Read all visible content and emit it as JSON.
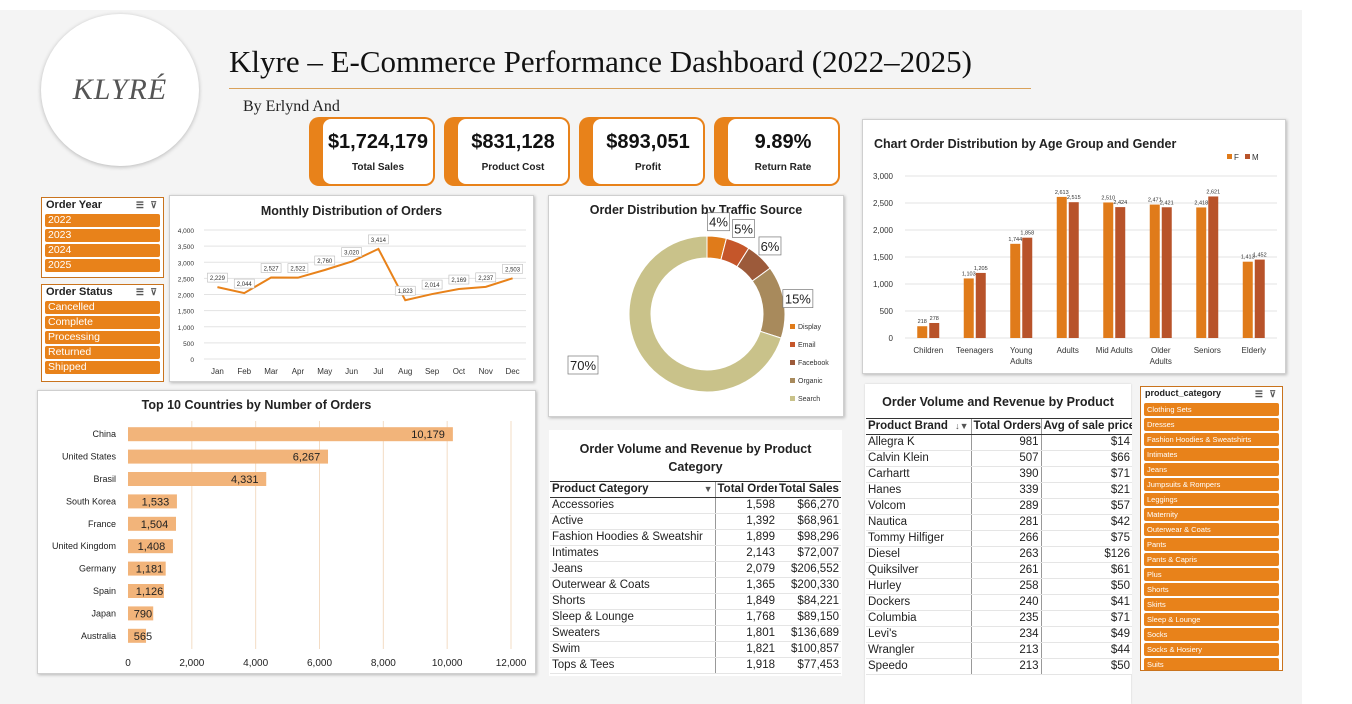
{
  "logo": "KLYRÉ",
  "title": "Klyre – E-Commerce Performance Dashboard (2022–2025)",
  "byline": "By Erlynd And",
  "kpis": [
    {
      "value": "$1,724,179",
      "label": "Total Sales"
    },
    {
      "value": "$831,128",
      "label": "Product Cost"
    },
    {
      "value": "$893,051",
      "label": "Profit"
    },
    {
      "value": "9.89%",
      "label": "Return Rate"
    }
  ],
  "slicers": {
    "order_year": {
      "title": "Order Year",
      "items": [
        "2022",
        "2023",
        "2024",
        "2025"
      ]
    },
    "order_status": {
      "title": "Order Status",
      "items": [
        "Cancelled",
        "Complete",
        "Processing",
        "Returned",
        "Shipped"
      ]
    },
    "product_category": {
      "title": "product_category",
      "items": [
        "Clothing Sets",
        "Dresses",
        "Fashion Hoodies & Sweatshirts",
        "Intimates",
        "Jeans",
        "Jumpsuits & Rompers",
        "Leggings",
        "Maternity",
        "Outerwear & Coats",
        "Pants",
        "Pants & Capris",
        "Plus",
        "Shorts",
        "Skirts",
        "Sleep & Lounge",
        "Socks",
        "Socks & Hosiery",
        "Suits"
      ]
    }
  },
  "colors": {
    "accent": "#e8821a",
    "bar_light": "#f2b47a",
    "female": "#e07b1a",
    "male": "#b8532a"
  },
  "chart_data": [
    {
      "type": "line",
      "title": "Monthly Distribution of Orders",
      "categories": [
        "Jan",
        "Feb",
        "Mar",
        "Apr",
        "May",
        "Jun",
        "Jul",
        "Aug",
        "Sep",
        "Oct",
        "Nov",
        "Dec"
      ],
      "values": [
        2229,
        2044,
        2527,
        2522,
        2760,
        3020,
        3414,
        1823,
        2014,
        2169,
        2237,
        2503
      ],
      "data_labels": [
        "2,229",
        "2,044",
        "2,527",
        "2,522",
        "2,760",
        "3,020",
        "3,414",
        "1,823",
        "2,014",
        "2,169",
        "2,237",
        "2,503"
      ],
      "ylim": [
        0,
        4000
      ],
      "yticks": [
        "0",
        "500",
        "1,000",
        "1,500",
        "2,000",
        "2,500",
        "3,000",
        "3,500",
        "4,000"
      ],
      "grid": true
    },
    {
      "type": "pie",
      "title": "Order Distribution by Traffic Source",
      "categories": [
        "Display",
        "Email",
        "Facebook",
        "Organic",
        "Search"
      ],
      "values": [
        4,
        5,
        6,
        15,
        70
      ],
      "data_labels": [
        "4%",
        "5%",
        "6%",
        "15%",
        "70%"
      ],
      "colors": [
        "#e07b1a",
        "#c5562a",
        "#9c5a3a",
        "#a88a5c",
        "#c9c28a"
      ],
      "legend": "right"
    },
    {
      "type": "bar",
      "title": "Chart Order Distribution by Age Group and Gender",
      "categories": [
        "Children",
        "Teenagers",
        "Young Adults",
        "Adults",
        "Mid Adults",
        "Older Adults",
        "Seniors",
        "Elderly"
      ],
      "series": [
        {
          "name": "F",
          "values": [
            218,
            1103,
            1744,
            2613,
            2510,
            2471,
            2418,
            1413
          ],
          "labels": [
            "218",
            "1,103",
            "1,744",
            "2,613",
            "2,510",
            "2,471",
            "2,418",
            "1,413"
          ]
        },
        {
          "name": "M",
          "values": [
            278,
            1205,
            1858,
            2515,
            2424,
            2421,
            2621,
            1452
          ],
          "labels": [
            "278",
            "1,205",
            "1,858",
            "2,515",
            "2,424",
            "2,421",
            "2,621",
            "1,452"
          ]
        }
      ],
      "ylim": [
        0,
        3000
      ],
      "yticks": [
        "0",
        "500",
        "1,000",
        "1,500",
        "2,000",
        "2,500",
        "3,000"
      ],
      "legend": "top-right",
      "grid": true
    },
    {
      "type": "bar",
      "orientation": "horizontal",
      "title": "Top 10 Countries by Number of Orders",
      "categories": [
        "China",
        "United States",
        "Brasil",
        "South Korea",
        "France",
        "United Kingdom",
        "Germany",
        "Spain",
        "Japan",
        "Australia"
      ],
      "values": [
        10179,
        6267,
        4331,
        1533,
        1504,
        1408,
        1181,
        1126,
        790,
        565
      ],
      "data_labels": [
        "10,179",
        "6,267",
        "4,331",
        "1,533",
        "1,504",
        "1,408",
        "1,181",
        "1,126",
        "790",
        "565"
      ],
      "xlim": [
        0,
        12000
      ],
      "xticks": [
        "0",
        "2,000",
        "4,000",
        "6,000",
        "8,000",
        "10,000",
        "12,000"
      ]
    }
  ],
  "category_table": {
    "title": "Order Volume and Revenue by Product Category",
    "headers": [
      "Product Category",
      "Total Order",
      "Total Sales"
    ],
    "rows": [
      [
        "Accessories",
        "1,598",
        "$66,270"
      ],
      [
        "Active",
        "1,392",
        "$68,961"
      ],
      [
        "Fashion Hoodies & Sweatshir",
        "1,899",
        "$98,296"
      ],
      [
        "Intimates",
        "2,143",
        "$72,007"
      ],
      [
        "Jeans",
        "2,079",
        "$206,552"
      ],
      [
        "Outerwear & Coats",
        "1,365",
        "$200,330"
      ],
      [
        "Shorts",
        "1,849",
        "$84,221"
      ],
      [
        "Sleep & Lounge",
        "1,768",
        "$89,150"
      ],
      [
        "Sweaters",
        "1,801",
        "$136,689"
      ],
      [
        "Swim",
        "1,821",
        "$100,857"
      ],
      [
        "Tops & Tees",
        "1,918",
        "$77,453"
      ]
    ]
  },
  "brand_table": {
    "title": "Order Volume and Revenue by Product",
    "headers": [
      "Product Brand",
      "Total Orders",
      "Avg of sale price"
    ],
    "rows": [
      [
        "Allegra K",
        "981",
        "$14"
      ],
      [
        "Calvin Klein",
        "507",
        "$66"
      ],
      [
        "Carhartt",
        "390",
        "$71"
      ],
      [
        "Hanes",
        "339",
        "$21"
      ],
      [
        "Volcom",
        "289",
        "$57"
      ],
      [
        "Nautica",
        "281",
        "$42"
      ],
      [
        "Tommy Hilfiger",
        "266",
        "$75"
      ],
      [
        "Diesel",
        "263",
        "$126"
      ],
      [
        "Quiksilver",
        "261",
        "$61"
      ],
      [
        "Hurley",
        "258",
        "$50"
      ],
      [
        "Dockers",
        "240",
        "$41"
      ],
      [
        "Columbia",
        "235",
        "$71"
      ],
      [
        "Levi's",
        "234",
        "$49"
      ],
      [
        "Wrangler",
        "213",
        "$44"
      ],
      [
        "Speedo",
        "213",
        "$50"
      ]
    ]
  }
}
